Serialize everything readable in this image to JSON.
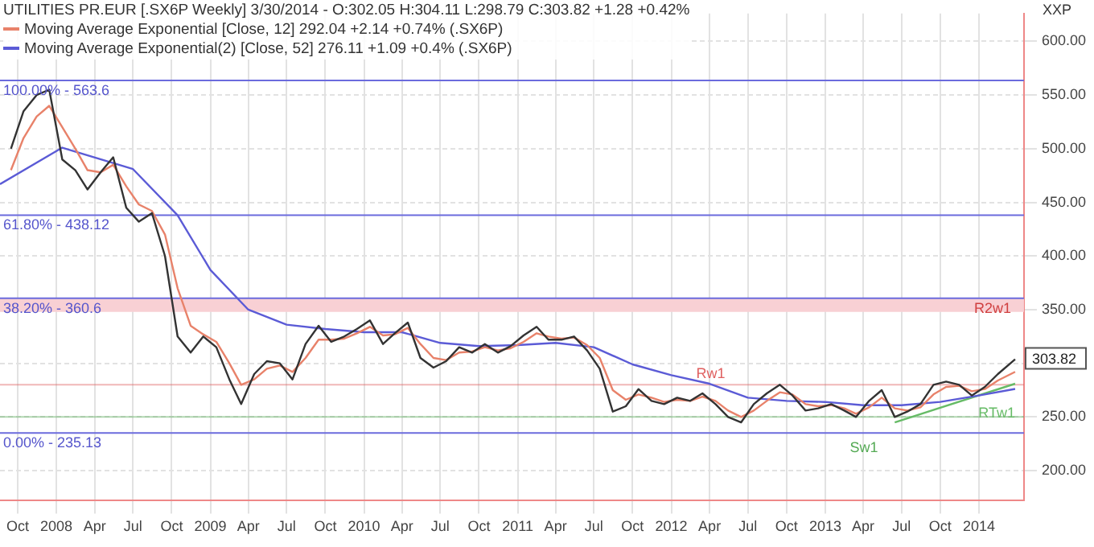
{
  "chart_data": {
    "type": "line",
    "title": "UTILITIES PR.EUR [.SX6P  Weekly] 3/30/2014 - O:302.05 H:304.11 L:298.79 C:303.82 +1.28 +0.42%",
    "ylabel": "XXP",
    "x": [
      "2007-09-15",
      "2007-10-15",
      "2007-11-15",
      "2007-12-15",
      "2008-01-15",
      "2008-02-15",
      "2008-03-15",
      "2008-04-15",
      "2008-05-15",
      "2008-06-15",
      "2008-07-15",
      "2008-08-15",
      "2008-09-15",
      "2008-10-15",
      "2008-11-15",
      "2008-12-15",
      "2009-01-15",
      "2009-02-15",
      "2009-03-15",
      "2009-04-15",
      "2009-05-15",
      "2009-06-15",
      "2009-07-15",
      "2009-08-15",
      "2009-09-15",
      "2009-10-15",
      "2009-11-15",
      "2009-12-15",
      "2010-01-15",
      "2010-02-15",
      "2010-03-15",
      "2010-04-15",
      "2010-05-15",
      "2010-06-15",
      "2010-07-15",
      "2010-08-15",
      "2010-09-15",
      "2010-10-15",
      "2010-11-15",
      "2010-12-15",
      "2011-01-15",
      "2011-02-15",
      "2011-03-15",
      "2011-04-15",
      "2011-05-15",
      "2011-06-15",
      "2011-07-15",
      "2011-08-15",
      "2011-09-15",
      "2011-10-15",
      "2011-11-15",
      "2011-12-15",
      "2012-01-15",
      "2012-02-15",
      "2012-03-15",
      "2012-04-15",
      "2012-05-15",
      "2012-06-15",
      "2012-07-15",
      "2012-08-15",
      "2012-09-15",
      "2012-10-15",
      "2012-11-15",
      "2012-12-15",
      "2013-01-15",
      "2013-02-15",
      "2013-03-15",
      "2013-04-15",
      "2013-05-15",
      "2013-06-15",
      "2013-07-15",
      "2013-08-15",
      "2013-09-15",
      "2013-10-15",
      "2013-11-15",
      "2013-12-15",
      "2014-01-15",
      "2014-02-15",
      "2014-03-28"
    ],
    "series": [
      {
        "color": "#333333",
        "values": [
          500,
          535,
          550,
          555,
          490,
          480,
          462,
          478,
          492,
          445,
          432,
          440,
          400,
          325,
          310,
          325,
          315,
          285,
          262,
          290,
          302,
          300,
          285,
          318,
          335,
          320,
          325,
          332,
          340,
          318,
          328,
          338,
          305,
          296,
          302,
          315,
          310,
          318,
          310,
          316,
          326,
          334,
          322,
          322,
          325,
          312,
          295,
          255,
          260,
          276,
          265,
          262,
          268,
          265,
          272,
          262,
          250,
          245,
          262,
          272,
          280,
          270,
          256,
          258,
          262,
          256,
          250,
          265,
          275,
          250,
          255,
          262,
          280,
          283,
          280,
          270,
          278,
          290,
          303.82
        ]
      },
      {
        "name": "Moving Average Exponential [Close, 12] 292.04 +2.14 +0.74% (.SX6P)",
        "color": "#e8826a",
        "values": [
          480,
          510,
          530,
          540,
          520,
          500,
          480,
          478,
          485,
          465,
          448,
          442,
          420,
          370,
          335,
          327,
          320,
          300,
          280,
          285,
          295,
          298,
          292,
          305,
          322,
          322,
          323,
          328,
          334,
          326,
          327,
          333,
          318,
          305,
          303,
          310,
          311,
          315,
          312,
          314,
          320,
          328,
          325,
          323,
          324,
          317,
          305,
          275,
          266,
          271,
          268,
          264,
          266,
          265,
          269,
          265,
          256,
          250,
          256,
          265,
          273,
          271,
          262,
          260,
          261,
          258,
          253,
          259,
          268,
          258,
          256,
          259,
          271,
          278,
          279,
          274,
          276,
          284,
          292.04
        ]
      },
      {
        "name": "Moving Average Exponential(2) [Close, 52] 276.11 +1.09 +0.4% (.SX6P)",
        "color": "#5b5bd6",
        "x": [
          "2007-08-20",
          "2008-01-15",
          "2008-07-01",
          "2008-10-15",
          "2009-01-01",
          "2009-04-01",
          "2009-07-01",
          "2009-10-01",
          "2010-01-01",
          "2010-04-01",
          "2010-07-01",
          "2010-10-01",
          "2011-01-01",
          "2011-04-01",
          "2011-07-01",
          "2011-10-01",
          "2012-01-01",
          "2012-04-01",
          "2012-07-01",
          "2012-10-01",
          "2013-01-01",
          "2013-04-01",
          "2013-07-01",
          "2013-10-01",
          "2014-01-01",
          "2014-03-28"
        ],
        "values": [
          467,
          501,
          481,
          438,
          387,
          350,
          336,
          332,
          329,
          329,
          319,
          316,
          317,
          319,
          315,
          299,
          289,
          281,
          268,
          265,
          264,
          261,
          261,
          264,
          270,
          276.11
        ]
      },
      {
        "name": "RTw1",
        "color": "#66bb66",
        "x": [
          "2013-06-15",
          "2014-03-28"
        ],
        "values": [
          245,
          281
        ]
      }
    ],
    "xlim": [
      "2007-08-20",
      "2014-04-18"
    ],
    "xticks": [
      {
        "value": "2007-10-01",
        "label": "Oct"
      },
      {
        "value": "2008-01-01",
        "label": "2008"
      },
      {
        "value": "2008-04-01",
        "label": "Apr"
      },
      {
        "value": "2008-07-01",
        "label": "Jul"
      },
      {
        "value": "2008-10-01",
        "label": "Oct"
      },
      {
        "value": "2009-01-01",
        "label": "2009"
      },
      {
        "value": "2009-04-01",
        "label": "Apr"
      },
      {
        "value": "2009-07-01",
        "label": "Jul"
      },
      {
        "value": "2009-10-01",
        "label": "Oct"
      },
      {
        "value": "2010-01-01",
        "label": "2010"
      },
      {
        "value": "2010-04-01",
        "label": "Apr"
      },
      {
        "value": "2010-07-01",
        "label": "Jul"
      },
      {
        "value": "2010-10-01",
        "label": "Oct"
      },
      {
        "value": "2011-01-01",
        "label": "2011"
      },
      {
        "value": "2011-04-01",
        "label": "Apr"
      },
      {
        "value": "2011-07-01",
        "label": "Jul"
      },
      {
        "value": "2011-10-01",
        "label": "Oct"
      },
      {
        "value": "2012-01-01",
        "label": "2012"
      },
      {
        "value": "2012-04-01",
        "label": "Apr"
      },
      {
        "value": "2012-07-01",
        "label": "Jul"
      },
      {
        "value": "2012-10-01",
        "label": "Oct"
      },
      {
        "value": "2013-01-01",
        "label": "2013"
      },
      {
        "value": "2013-04-01",
        "label": "Apr"
      },
      {
        "value": "2013-07-01",
        "label": "Jul"
      },
      {
        "value": "2013-10-01",
        "label": "Oct"
      },
      {
        "value": "2014-01-01",
        "label": "2014"
      }
    ],
    "ylim": [
      172,
      626
    ],
    "yticks": [
      {
        "value": 200,
        "label": "200.00"
      },
      {
        "value": 250,
        "label": "250.00"
      },
      {
        "value": 300,
        "label": null
      },
      {
        "value": 350,
        "label": "350.00"
      },
      {
        "value": 400,
        "label": "400.00"
      },
      {
        "value": 450,
        "label": "450.00"
      },
      {
        "value": 500,
        "label": "500.00"
      },
      {
        "value": 550,
        "label": "550.00"
      },
      {
        "value": 600,
        "label": "600.00"
      }
    ],
    "ref_lines": [
      {
        "axis": "y",
        "value": 563.6,
        "color": "#6b6bdd"
      },
      {
        "axis": "y",
        "value": 438.12,
        "color": "#6b6bdd"
      },
      {
        "axis": "y",
        "value": 360.6,
        "color": "#6b6bdd"
      },
      {
        "axis": "y",
        "value": 235.13,
        "color": "#6b6bdd"
      },
      {
        "axis": "y",
        "value": 280,
        "label": "Rw1",
        "color": "#e06060"
      },
      {
        "axis": "y",
        "value": 250,
        "label": "Sw1",
        "color": "#55aa55"
      }
    ],
    "bands": [
      {
        "axis": "y",
        "from": 348,
        "to": 360.6,
        "label": "R2w1",
        "color": "#f8d0d4"
      }
    ],
    "annotations": [
      {
        "text": "303.82",
        "x": "2014-03-28",
        "y": 303.82
      },
      {
        "text": "100.00% - 563.6",
        "x": "2007-08-20",
        "y": 563.6
      },
      {
        "text": "61.80% - 438.12",
        "x": "2007-08-20",
        "y": 438.12
      },
      {
        "text": "38.20% - 360.6",
        "x": "2007-08-20",
        "y": 360.6
      },
      {
        "text": "0.00% - 235.13",
        "x": "2007-08-20",
        "y": 235.13
      }
    ],
    "grid": true,
    "legend": "top left",
    "marker": "none",
    "line_style": "solid"
  }
}
